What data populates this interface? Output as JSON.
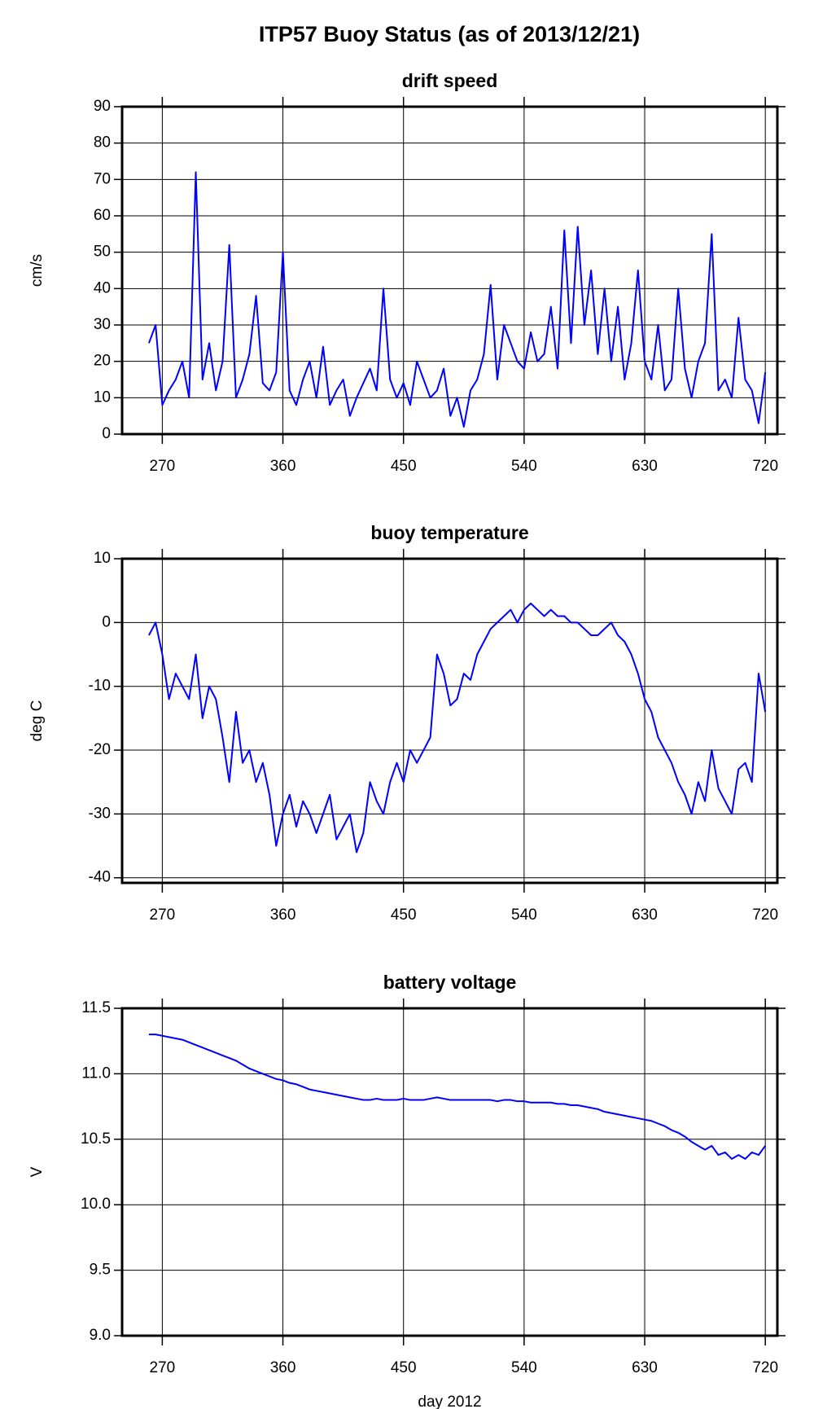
{
  "title": "ITP57 Buoy Status (as of 2013/12/21)",
  "chart_data": [
    {
      "type": "line",
      "title": "drift speed",
      "y_label": "cm/s",
      "color": "#0000ff",
      "grid": true,
      "xlim": [
        240,
        729
      ],
      "xticks": [
        270,
        360,
        450,
        540,
        630,
        720
      ],
      "ylim": [
        0,
        90
      ],
      "yticks": [
        0,
        10,
        20,
        30,
        40,
        50,
        60,
        70,
        80,
        90
      ],
      "x": [
        260,
        265,
        270,
        275,
        280,
        285,
        290,
        295,
        300,
        305,
        310,
        315,
        320,
        325,
        330,
        335,
        340,
        345,
        350,
        355,
        360,
        365,
        370,
        375,
        380,
        385,
        390,
        395,
        400,
        405,
        410,
        415,
        420,
        425,
        430,
        435,
        440,
        445,
        450,
        455,
        460,
        465,
        470,
        475,
        480,
        485,
        490,
        495,
        500,
        505,
        510,
        515,
        520,
        525,
        530,
        535,
        540,
        545,
        550,
        555,
        560,
        565,
        570,
        575,
        580,
        585,
        590,
        595,
        600,
        605,
        610,
        615,
        620,
        625,
        630,
        635,
        640,
        645,
        650,
        655,
        660,
        665,
        670,
        675,
        680,
        685,
        690,
        695,
        700,
        705,
        710,
        715,
        720
      ],
      "values": [
        25,
        30,
        8,
        12,
        15,
        20,
        10,
        72,
        15,
        25,
        12,
        20,
        52,
        10,
        15,
        22,
        38,
        14,
        12,
        17,
        50,
        12,
        8,
        15,
        20,
        10,
        24,
        8,
        12,
        15,
        5,
        10,
        14,
        18,
        12,
        40,
        15,
        10,
        14,
        8,
        20,
        15,
        10,
        12,
        18,
        5,
        10,
        2,
        12,
        15,
        22,
        41,
        15,
        30,
        25,
        20,
        18,
        28,
        20,
        22,
        35,
        18,
        56,
        25,
        57,
        30,
        45,
        22,
        40,
        20,
        35,
        15,
        25,
        45,
        20,
        15,
        30,
        12,
        15,
        40,
        18,
        10,
        20,
        25,
        55,
        12,
        15,
        10,
        32,
        15,
        12,
        3,
        17
      ]
    },
    {
      "type": "line",
      "title": "buoy temperature",
      "y_label": "deg C",
      "color": "#0000ff",
      "grid": true,
      "xlim": [
        240,
        729
      ],
      "xticks": [
        270,
        360,
        450,
        540,
        630,
        720
      ],
      "ylim": [
        -40.8,
        10
      ],
      "yticks": [
        -40,
        -30,
        -20,
        -10,
        0,
        10
      ],
      "x": [
        260,
        265,
        270,
        275,
        280,
        285,
        290,
        295,
        300,
        305,
        310,
        315,
        320,
        325,
        330,
        335,
        340,
        345,
        350,
        355,
        360,
        365,
        370,
        375,
        380,
        385,
        390,
        395,
        400,
        405,
        410,
        415,
        420,
        425,
        430,
        435,
        440,
        445,
        450,
        455,
        460,
        465,
        470,
        475,
        480,
        485,
        490,
        495,
        500,
        505,
        510,
        515,
        520,
        525,
        530,
        535,
        540,
        545,
        550,
        555,
        560,
        565,
        570,
        575,
        580,
        585,
        590,
        595,
        600,
        605,
        610,
        615,
        620,
        625,
        630,
        635,
        640,
        645,
        650,
        655,
        660,
        665,
        670,
        675,
        680,
        685,
        690,
        695,
        700,
        705,
        710,
        715,
        720
      ],
      "values": [
        -2,
        0,
        -5,
        -12,
        -8,
        -10,
        -12,
        -5,
        -15,
        -10,
        -12,
        -18,
        -25,
        -14,
        -22,
        -20,
        -25,
        -22,
        -27,
        -35,
        -30,
        -27,
        -32,
        -28,
        -30,
        -33,
        -30,
        -27,
        -34,
        -32,
        -30,
        -36,
        -33,
        -25,
        -28,
        -30,
        -25,
        -22,
        -25,
        -20,
        -22,
        -20,
        -18,
        -5,
        -8,
        -13,
        -12,
        -8,
        -9,
        -5,
        -3,
        -1,
        0,
        1,
        2,
        0,
        2,
        3,
        2,
        1,
        2,
        1,
        1,
        0,
        0,
        -1,
        -2,
        -2,
        -1,
        0,
        -2,
        -3,
        -5,
        -8,
        -12,
        -14,
        -18,
        -20,
        -22,
        -25,
        -27,
        -30,
        -25,
        -28,
        -20,
        -26,
        -28,
        -30,
        -23,
        -22,
        -25,
        -8,
        -14
      ]
    },
    {
      "type": "line",
      "title": "battery voltage",
      "y_label": "V",
      "x_label": "day 2012",
      "color": "#0000ff",
      "grid": true,
      "xlim": [
        240,
        729
      ],
      "xticks": [
        270,
        360,
        450,
        540,
        630,
        720
      ],
      "ylim": [
        9,
        11.5
      ],
      "yticks": [
        {
          "value": 9,
          "label": "9.0"
        },
        9.5,
        {
          "value": 10,
          "label": "10.0"
        },
        10.5,
        {
          "value": 11,
          "label": "11.0"
        },
        11.5
      ],
      "x": [
        260,
        265,
        270,
        275,
        280,
        285,
        290,
        295,
        300,
        305,
        310,
        315,
        320,
        325,
        330,
        335,
        340,
        345,
        350,
        355,
        360,
        365,
        370,
        375,
        380,
        385,
        390,
        395,
        400,
        405,
        410,
        415,
        420,
        425,
        430,
        435,
        440,
        445,
        450,
        455,
        460,
        465,
        470,
        475,
        480,
        485,
        490,
        495,
        500,
        505,
        510,
        515,
        520,
        525,
        530,
        535,
        540,
        545,
        550,
        555,
        560,
        565,
        570,
        575,
        580,
        585,
        590,
        595,
        600,
        605,
        610,
        615,
        620,
        625,
        630,
        635,
        640,
        645,
        650,
        655,
        660,
        665,
        670,
        675,
        680,
        685,
        690,
        695,
        700,
        705,
        710,
        715,
        720
      ],
      "values": [
        11.3,
        11.3,
        11.29,
        11.28,
        11.27,
        11.26,
        11.24,
        11.22,
        11.2,
        11.18,
        11.16,
        11.14,
        11.12,
        11.1,
        11.07,
        11.04,
        11.02,
        11.0,
        10.98,
        10.96,
        10.95,
        10.93,
        10.92,
        10.9,
        10.88,
        10.87,
        10.86,
        10.85,
        10.84,
        10.83,
        10.82,
        10.81,
        10.8,
        10.8,
        10.81,
        10.8,
        10.8,
        10.8,
        10.81,
        10.8,
        10.8,
        10.8,
        10.81,
        10.82,
        10.81,
        10.8,
        10.8,
        10.8,
        10.8,
        10.8,
        10.8,
        10.8,
        10.79,
        10.8,
        10.8,
        10.79,
        10.79,
        10.78,
        10.78,
        10.78,
        10.78,
        10.77,
        10.77,
        10.76,
        10.76,
        10.75,
        10.74,
        10.73,
        10.71,
        10.7,
        10.69,
        10.68,
        10.67,
        10.66,
        10.65,
        10.64,
        10.62,
        10.6,
        10.57,
        10.55,
        10.52,
        10.48,
        10.45,
        10.42,
        10.45,
        10.38,
        10.4,
        10.35,
        10.38,
        10.35,
        10.4,
        10.38,
        10.45
      ]
    }
  ]
}
